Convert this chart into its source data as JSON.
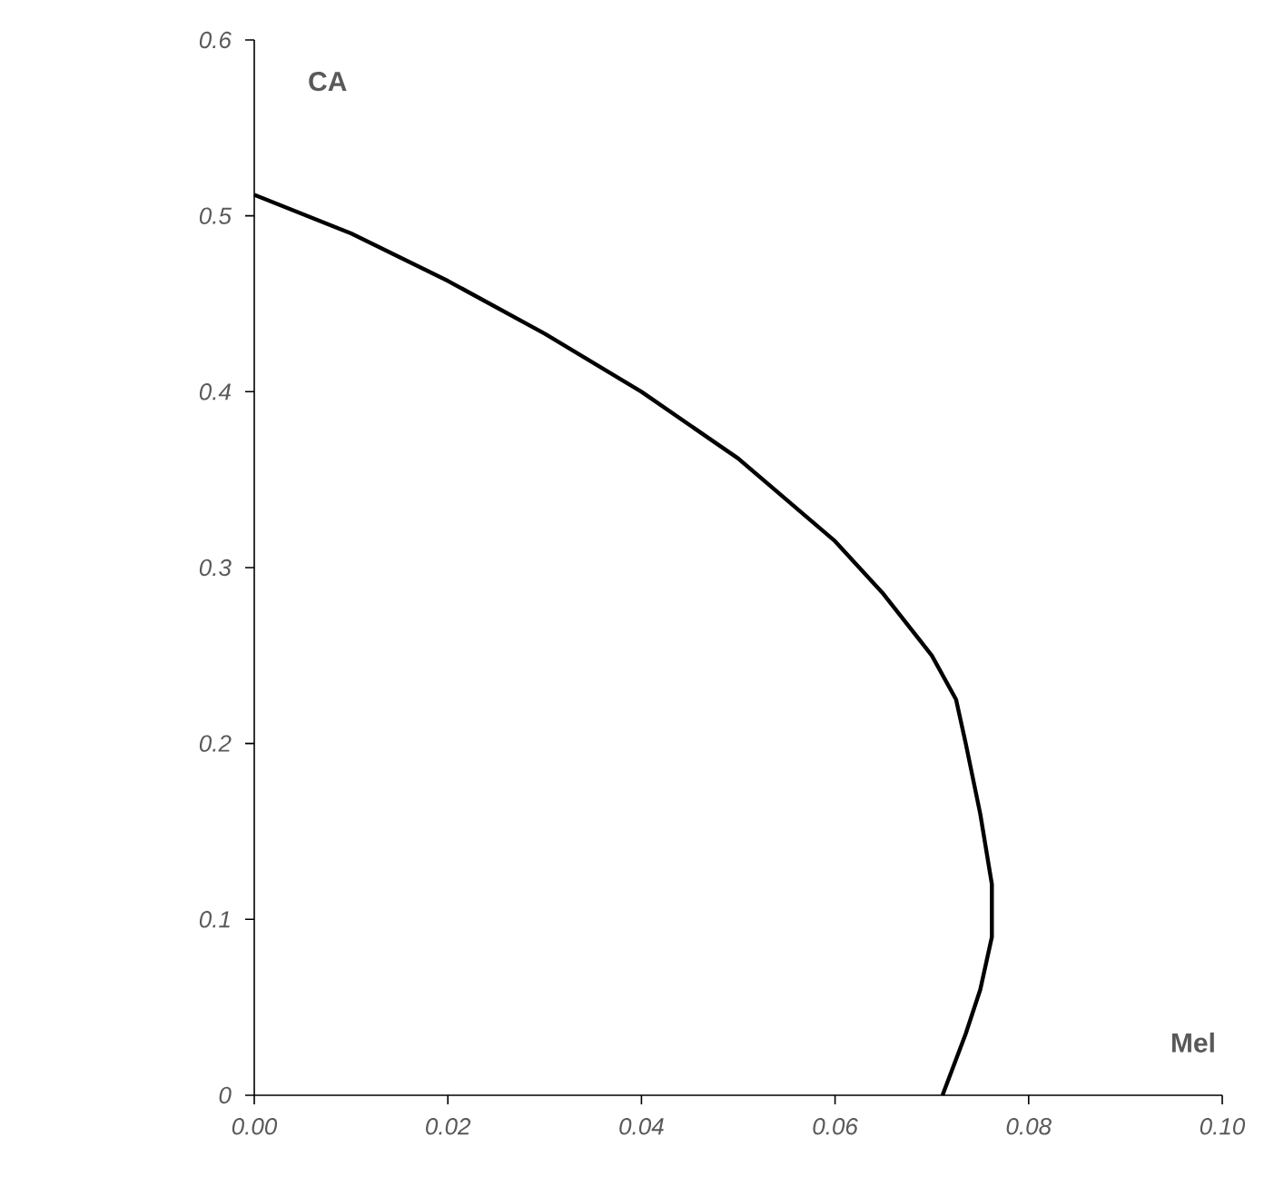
{
  "chart_data": {
    "type": "line",
    "xlabel": "Mel",
    "ylabel": "CA",
    "xlim": [
      0,
      0.1
    ],
    "ylim": [
      0,
      0.6
    ],
    "xticks": [
      {
        "value": 0,
        "label": "0.00"
      },
      0.02,
      0.04,
      0.06,
      0.08,
      {
        "value": 0.1,
        "label": "0.10"
      }
    ],
    "yticks": [
      0,
      0.1,
      0.2,
      0.3,
      0.4,
      0.5,
      0.6
    ],
    "series": [
      {
        "color": "#000000",
        "x": [
          0,
          0.01,
          0.02,
          0.03,
          0.04,
          0.05,
          0.06,
          0.065,
          0.07,
          0.0725,
          0.0735,
          0.075,
          0.0762,
          0.0762,
          0.075,
          0.0735,
          0.0711
        ],
        "values": [
          0.512,
          0.49,
          0.463,
          0.433,
          0.4,
          0.362,
          0.315,
          0.285,
          0.25,
          0.225,
          0.2,
          0.16,
          0.12,
          0.09,
          0.06,
          0.035,
          0
        ]
      }
    ]
  }
}
